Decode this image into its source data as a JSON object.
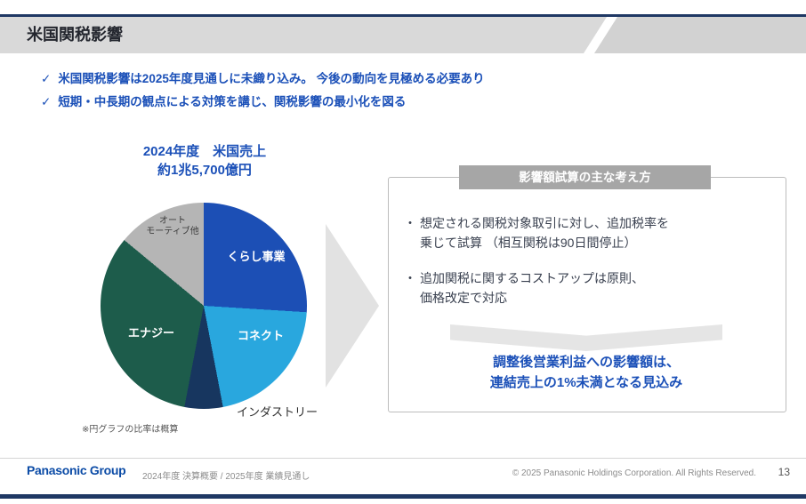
{
  "slide": {
    "title": "米国関税影響",
    "key_messages": [
      "米国関税影響は2025年度見通しに未織り込み。 今後の動向を見極める必要あり",
      "短期・中長期の観点による対策を講じ、関税影響の最小化を図る"
    ],
    "pie": {
      "title_line1": "2024年度　米国売上",
      "title_line2": "約1兆5,700億円",
      "labels": {
        "kurashi": "くらし事業",
        "connect": "コネクト",
        "industry": "インダストリー",
        "energy": "エナジー",
        "auto_line1": "オート",
        "auto_line2": "モーティブ他"
      },
      "footnote": "※円グラフの比率は概算"
    },
    "estimation_box": {
      "header": "影響額試算の主な考え方",
      "bullets": [
        {
          "line1": "想定される関税対象取引に対し、追加税率を",
          "line2": "乗じて試算 （相互関税は90日間停止）"
        },
        {
          "line1": "追加関税に関するコストアップは原則、",
          "line2": "価格改定で対応"
        }
      ],
      "conclusion_line1": "調整後営業利益への影響額は、",
      "conclusion_line2": "連結売上の1%未満となる見込み"
    },
    "footer": {
      "logo": "Panasonic Group",
      "deck_title": "2024年度 決算概要 / 2025年度 業績見通し",
      "copyright": "© 2025 Panasonic Holdings Corporation. All Rights Reserved.",
      "page_number": "13"
    }
  },
  "icons": {
    "check": "✓",
    "bullet": "・"
  },
  "colors": {
    "accent_blue": "#1b50b8",
    "navy_line": "#1f3864",
    "band_gray": "#d9d9d9",
    "box_header_gray": "#a6a6a6"
  },
  "chart_data": {
    "type": "pie",
    "title": "2024年度 米国売上 約1兆5,700億円",
    "labels": [
      "くらし事業",
      "コネクト",
      "インダストリー",
      "エナジー",
      "オートモーティブ他"
    ],
    "values_percent": [
      26,
      21,
      6,
      33,
      14
    ],
    "colors": [
      "#1c4fb5",
      "#29a7de",
      "#17365f",
      "#1d5c4b",
      "#b5b5b5"
    ],
    "note": "※円グラフの比率は概算"
  }
}
